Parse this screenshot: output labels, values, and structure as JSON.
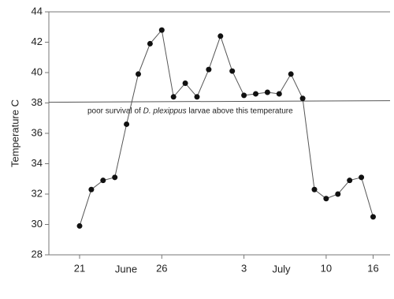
{
  "chart_data": {
    "type": "line",
    "y_label": "Temperature C",
    "categories": [
      "21",
      null,
      null,
      null,
      null,
      null,
      null,
      "26",
      null,
      null,
      null,
      null,
      null,
      null,
      "3",
      null,
      null,
      null,
      null,
      null,
      null,
      "10",
      null,
      null,
      null,
      "16"
    ],
    "months": [
      "June",
      "July"
    ],
    "series": [
      {
        "name": "Temperature",
        "color": "#111111",
        "values": [
          29.9,
          32.3,
          32.9,
          33.1,
          36.6,
          39.9,
          41.9,
          42.8,
          38.4,
          39.3,
          38.4,
          40.2,
          42.4,
          40.1,
          38.5,
          38.6,
          38.7,
          38.6,
          39.9,
          38.3,
          32.3,
          31.7,
          32.0,
          32.9,
          33.1,
          30.5
        ]
      }
    ],
    "threshold": 38.1,
    "annotation": [
      "poor survival of ",
      "D. plexippus",
      " larvae above this temperature"
    ],
    "ylim": [
      28,
      44
    ],
    "yticks": [
      28,
      30,
      32,
      34,
      36,
      38,
      40,
      42,
      44
    ]
  }
}
